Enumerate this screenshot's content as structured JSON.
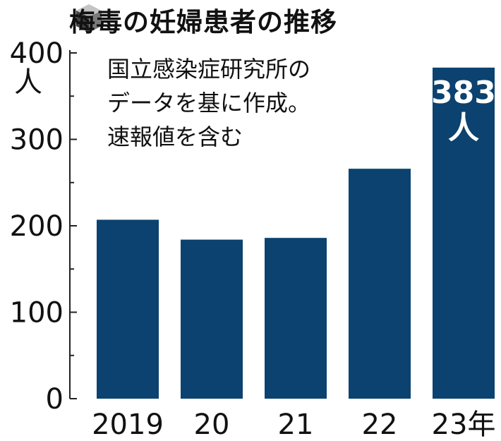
{
  "title_icon": "cube-icon",
  "chart_data": {
    "type": "bar",
    "title": "梅毒の妊婦患者の推移",
    "categories": [
      "2019",
      "20",
      "21",
      "22",
      "23年"
    ],
    "values": [
      207,
      184,
      186,
      266,
      383
    ],
    "ylim": [
      0,
      400
    ],
    "yticks": [
      0,
      100,
      200,
      300,
      400
    ],
    "y_unit": "人",
    "xlabel": "",
    "ylabel": "",
    "grid": false,
    "bar_color": "#0b4270",
    "note_lines": [
      "国立感染症研究所の",
      "データを基に作成。",
      "速報値を含む"
    ],
    "data_labels": [
      {
        "index": 4,
        "value": "383",
        "unit": "人"
      }
    ]
  }
}
